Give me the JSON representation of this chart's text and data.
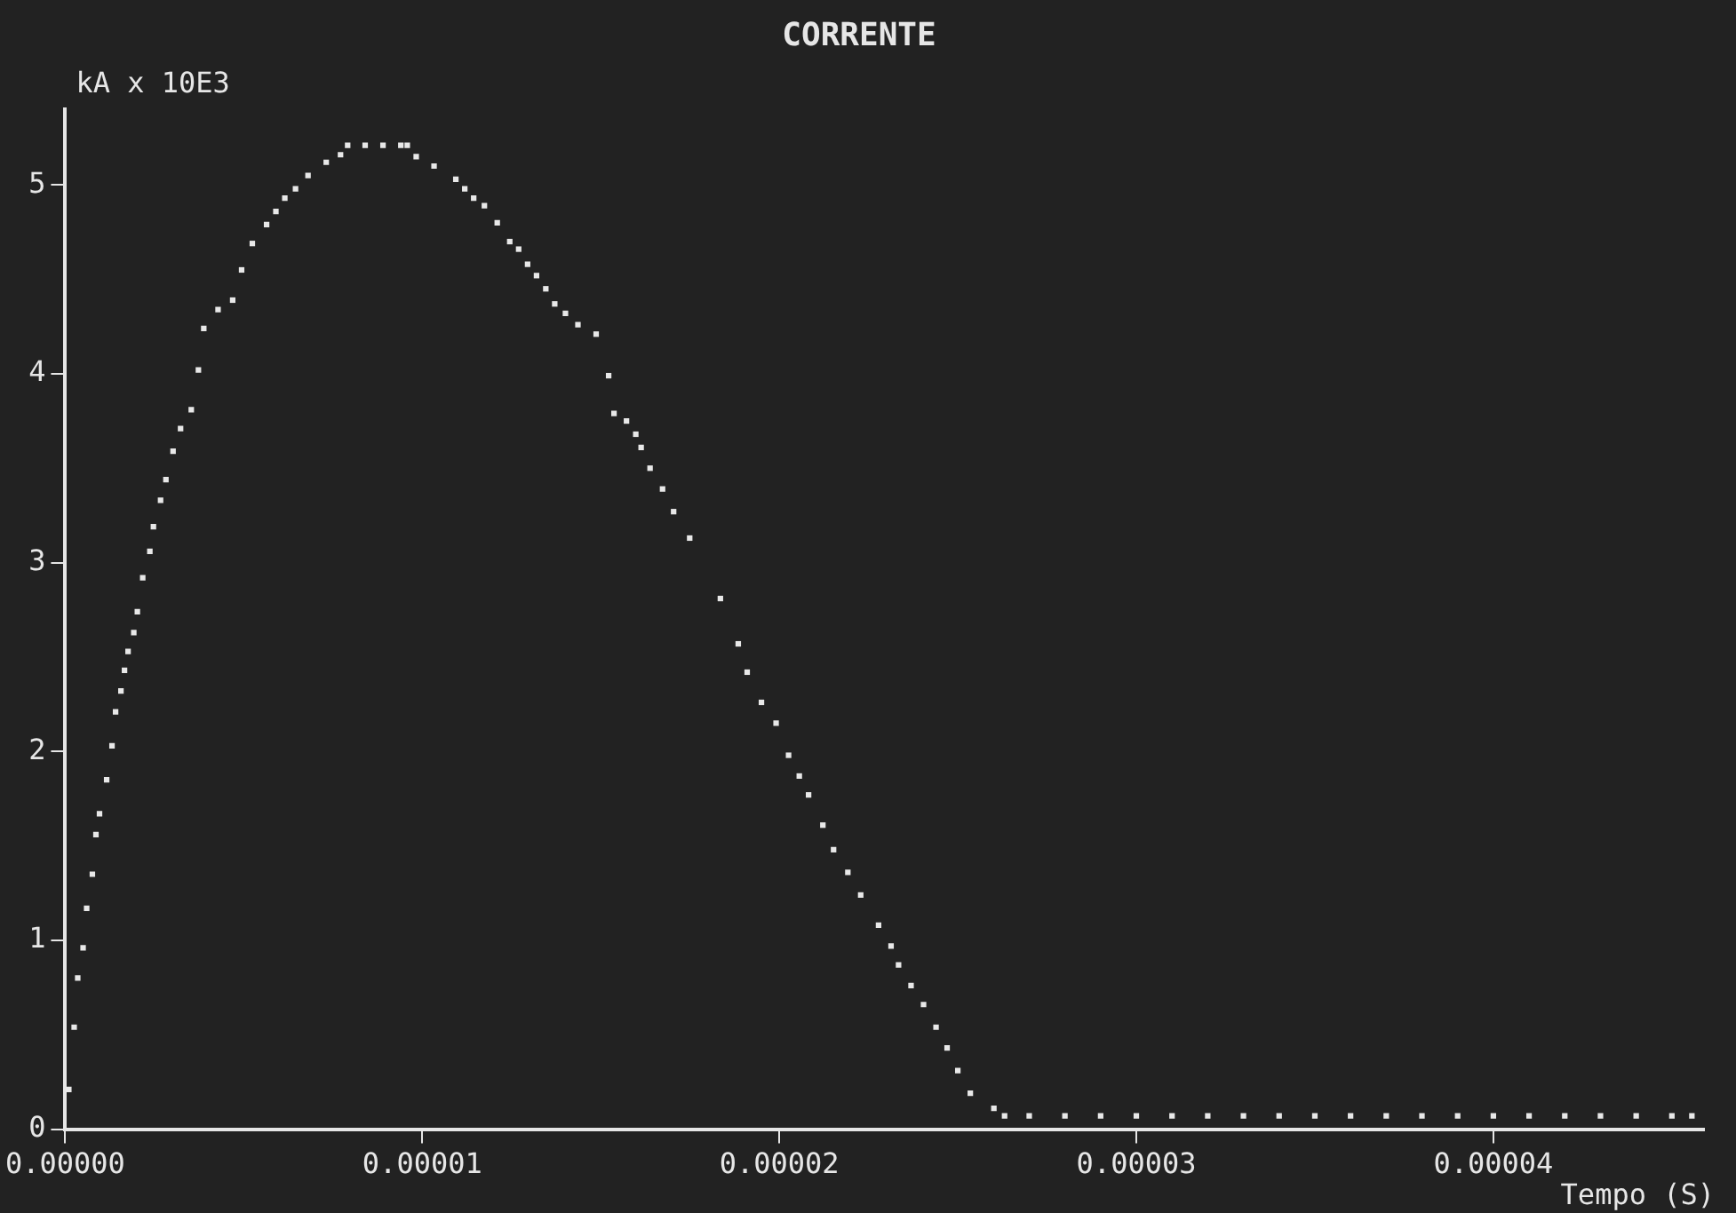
{
  "chart_data": {
    "type": "scatter",
    "title": "CORRENTE",
    "xlabel": "Tempo (S)",
    "ylabel": "kA x 10E3",
    "x": [
      1e-07,
      2.5e-07,
      3.5e-07,
      5e-07,
      6e-07,
      7.6e-07,
      8.6e-07,
      9.6e-07,
      1.16e-06,
      1.31e-06,
      1.41e-06,
      1.56e-06,
      1.66e-06,
      1.76e-06,
      1.92e-06,
      2.02e-06,
      2.17e-06,
      2.37e-06,
      2.47e-06,
      2.67e-06,
      2.82e-06,
      3.02e-06,
      3.23e-06,
      3.53e-06,
      3.73e-06,
      3.88e-06,
      4.28e-06,
      4.69e-06,
      4.94e-06,
      5.24e-06,
      5.64e-06,
      5.9e-06,
      6.15e-06,
      6.45e-06,
      6.8e-06,
      7.31e-06,
      7.71e-06,
      7.91e-06,
      8.4e-06,
      8.9e-06,
      9.4e-06,
      9.58e-06,
      9.83e-06,
      1.033e-05,
      1.094e-05,
      1.119e-05,
      1.144e-05,
      1.174e-05,
      1.21e-05,
      1.245e-05,
      1.27e-05,
      1.295e-05,
      1.32e-05,
      1.346e-05,
      1.371e-05,
      1.401e-05,
      1.436e-05,
      1.487e-05,
      1.522e-05,
      1.537e-05,
      1.572e-05,
      1.598e-05,
      1.613e-05,
      1.638e-05,
      1.673e-05,
      1.704e-05,
      1.749e-05,
      1.835e-05,
      1.885e-05,
      1.91e-05,
      1.95e-05,
      1.991e-05,
      2.026e-05,
      2.056e-05,
      2.082e-05,
      2.122e-05,
      2.152e-05,
      2.192e-05,
      2.228e-05,
      2.278e-05,
      2.313e-05,
      2.334e-05,
      2.369e-05,
      2.404e-05,
      2.439e-05,
      2.47e-05,
      2.5e-05,
      2.535e-05,
      2.601e-05,
      2.631e-05,
      2.7e-05,
      2.8e-05,
      2.9e-05,
      3e-05,
      3.1e-05,
      3.2e-05,
      3.3e-05,
      3.4e-05,
      3.5e-05,
      3.6e-05,
      3.7e-05,
      3.8e-05,
      3.9e-05,
      4e-05,
      4.1e-05,
      4.2e-05,
      4.3e-05,
      4.4e-05,
      4.5e-05,
      4.556e-05
    ],
    "series": [
      {
        "color": "#e8e8e8",
        "values": [
          0.21,
          0.54,
          0.8,
          0.96,
          1.17,
          1.35,
          1.56,
          1.67,
          1.85,
          2.03,
          2.21,
          2.32,
          2.43,
          2.53,
          2.63,
          2.74,
          2.92,
          3.06,
          3.19,
          3.33,
          3.44,
          3.59,
          3.71,
          3.81,
          4.02,
          4.24,
          4.34,
          4.39,
          4.55,
          4.69,
          4.79,
          4.86,
          4.93,
          4.98,
          5.05,
          5.12,
          5.16,
          5.21,
          5.21,
          5.21,
          5.21,
          5.21,
          5.15,
          5.1,
          5.03,
          4.98,
          4.93,
          4.89,
          4.8,
          4.7,
          4.66,
          4.58,
          4.52,
          4.45,
          4.37,
          4.32,
          4.26,
          4.21,
          3.99,
          3.79,
          3.75,
          3.68,
          3.61,
          3.5,
          3.39,
          3.27,
          3.13,
          2.81,
          2.57,
          2.42,
          2.26,
          2.15,
          1.98,
          1.87,
          1.77,
          1.61,
          1.48,
          1.36,
          1.24,
          1.08,
          0.97,
          0.87,
          0.76,
          0.66,
          0.54,
          0.43,
          0.31,
          0.19,
          0.11,
          0.07,
          0.07,
          0.07,
          0.07,
          0.07,
          0.07,
          0.07,
          0.07,
          0.07,
          0.07,
          0.07,
          0.07,
          0.07,
          0.07,
          0.07,
          0.07,
          0.07,
          0.07,
          0.07,
          0.07,
          0.07
        ]
      }
    ],
    "xlim": [
      0,
      4.59e-05
    ],
    "ylim": [
      0,
      5.4
    ],
    "xticks": [
      {
        "value": 0,
        "label": "0.00000"
      },
      {
        "value": 1e-05,
        "label": "0.00001"
      },
      {
        "value": 2e-05,
        "label": "0.00002"
      },
      {
        "value": 3e-05,
        "label": "0.00003"
      },
      {
        "value": 4e-05,
        "label": "0.00004"
      }
    ],
    "yticks": [
      0,
      1,
      2,
      3,
      4,
      5
    ],
    "grid": false,
    "legend": false,
    "marker": "square"
  }
}
